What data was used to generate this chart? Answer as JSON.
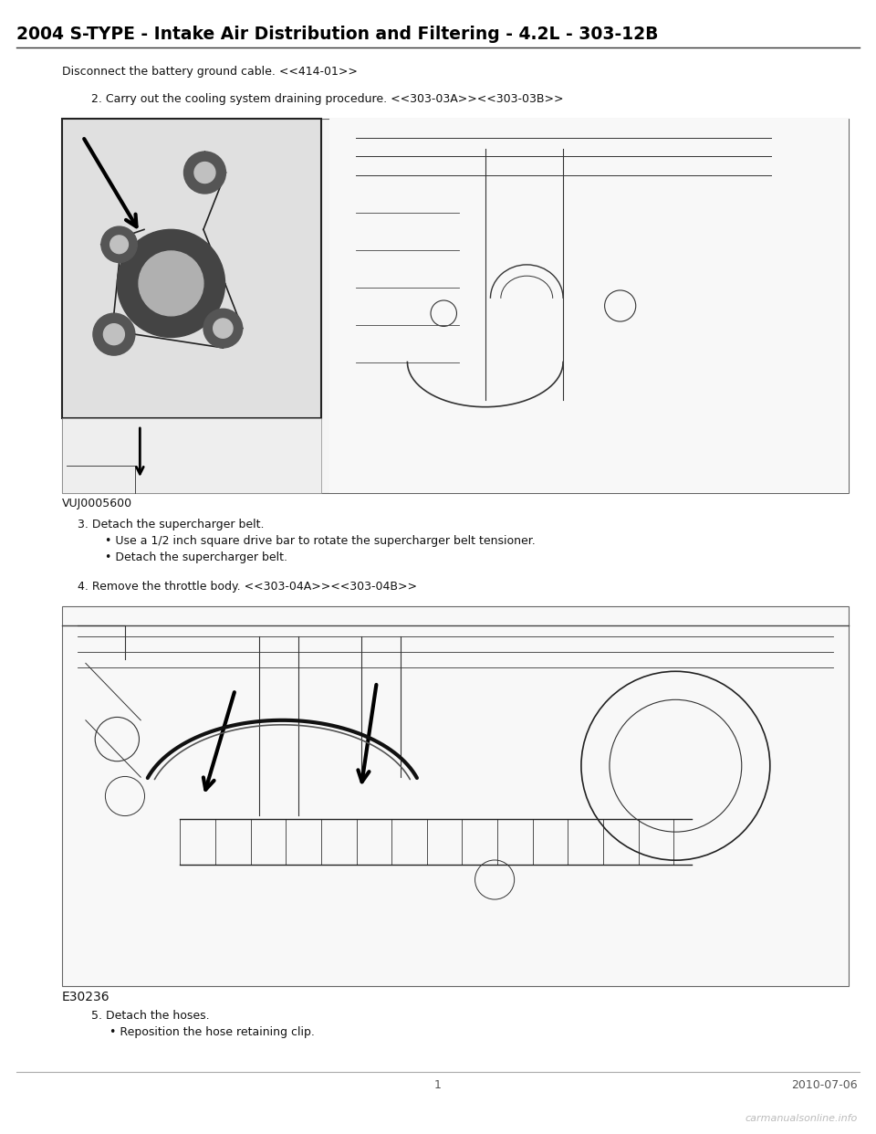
{
  "title": "2004 S-TYPE - Intake Air Distribution and Filtering - 4.2L - 303-12B",
  "bg_color": "#ffffff",
  "title_color": "#000000",
  "title_fontsize": 13.5,
  "page_number": "1",
  "date": "2010-07-06",
  "watermark": "carmanualsonline.info",
  "step1_text": "Disconnect the battery ground cable. <<414-01>>",
  "step2_text": "2. Carry out the cooling system draining procedure. <<303-03A>><<303-03B>>",
  "step3_header": "3. Detach the supercharger belt.",
  "step3_bullet1": "• Use a 1/2 inch square drive bar to rotate the supercharger belt tensioner.",
  "step3_bullet2": "• Detach the supercharger belt.",
  "step4_text": "4. Remove the throttle body. <<303-04A>><<303-04B>>",
  "step5_header": "5. Detach the hoses.",
  "step5_bullet1": "• Reposition the hose retaining clip.",
  "fig1_label": "VUJ0005600",
  "fig2_label": "E30236",
  "text_fontsize": 9,
  "label_fontsize": 9,
  "line_color": "#111111",
  "fig_bg": "#ffffff",
  "fig_border": "#333333",
  "inset_bg": "#cccccc"
}
